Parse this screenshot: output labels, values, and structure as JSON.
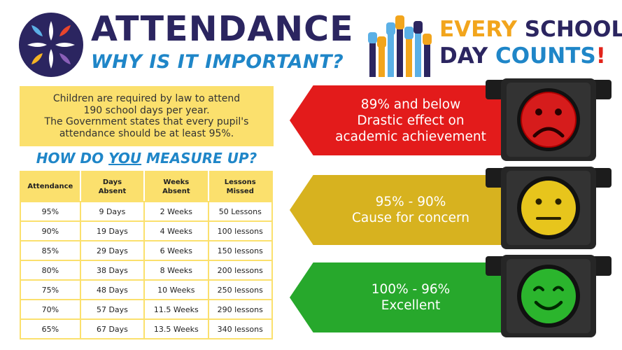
{
  "header": {
    "title": "ATTENDANCE",
    "subtitle": "WHY IS IT IMPORTANT?",
    "campaign": {
      "line1_a": "EVERY",
      "line1_b": "SCHOOL",
      "line2_a": "DAY",
      "line2_b": "COUNTS",
      "line2_c": "!"
    }
  },
  "info": {
    "line1": "Children are required by law to attend",
    "line2": "190 school days per year.",
    "line3": "The Government states that every pupil's",
    "line4": "attendance should be at least 95%."
  },
  "measure": {
    "before": "HOW DO ",
    "emphasis": "YOU",
    "after": " MEASURE UP?"
  },
  "table": {
    "headers": [
      "Attendance",
      "Days\nAbsent",
      "Weeks\nAbsent",
      "Lessons\nMissed"
    ],
    "rows": [
      [
        "95%",
        "9 Days",
        "2 Weeks",
        "50 Lessons"
      ],
      [
        "90%",
        "19 Days",
        "4 Weeks",
        "100 lessons"
      ],
      [
        "85%",
        "29 Days",
        "6 Weeks",
        "150 lessons"
      ],
      [
        "80%",
        "38 Days",
        "8 Weeks",
        "200 lessons"
      ],
      [
        "75%",
        "48 Days",
        "10 Weeks",
        "250 lessons"
      ],
      [
        "70%",
        "57 Days",
        "11.5 Weeks",
        "290 lessons"
      ],
      [
        "65%",
        "67 Days",
        "13.5 Weeks",
        "340 lessons"
      ]
    ]
  },
  "bands": {
    "red": {
      "line1": "89% and below",
      "line2": "Drastic effect on",
      "line3": "academic achievement",
      "face": "sad-face-icon"
    },
    "yellow": {
      "line1": "95% - 90%",
      "line2": "Cause for concern",
      "face": "neutral-face-icon"
    },
    "green": {
      "line1": "100% - 96%",
      "line2": "Excellent",
      "face": "happy-face-icon"
    }
  },
  "colors": {
    "navy": "#2b2560",
    "blue": "#1f86c8",
    "yellow_box": "#fbe06d",
    "red": "#e31b1b",
    "amber": "#d7b21f",
    "green": "#27a82c"
  }
}
